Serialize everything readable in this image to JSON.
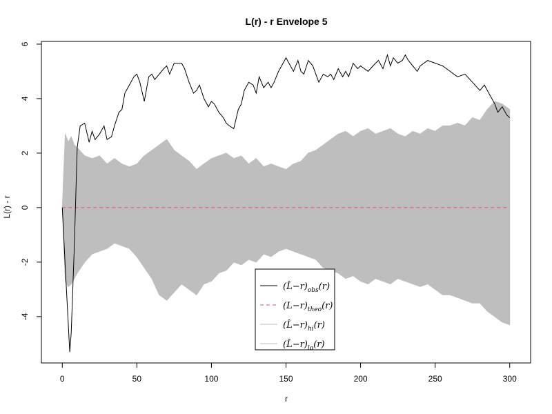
{
  "chart_data": {
    "type": "line",
    "title": "L(r) - r Envelope 5",
    "xlabel": "r",
    "ylabel": "L(r) - r",
    "xlim": [
      -14,
      314
    ],
    "ylim": [
      -5.7,
      6.1
    ],
    "xticks": [
      0,
      50,
      100,
      150,
      200,
      250,
      300
    ],
    "yticks": [
      -4,
      -2,
      0,
      2,
      4,
      6
    ],
    "legend_position": "bottom-center",
    "grid": false,
    "colors": {
      "obs": "#000000",
      "theo": "#DF536B",
      "envelope": "#BEBEBE"
    },
    "series": [
      {
        "name": "obs",
        "style": "solid black line",
        "x": [
          0,
          2,
          5,
          6,
          8,
          10,
          12,
          15,
          18,
          20,
          22,
          25,
          28,
          30,
          33,
          35,
          38,
          40,
          42,
          45,
          48,
          50,
          52,
          55,
          58,
          60,
          62,
          65,
          68,
          70,
          72,
          75,
          78,
          80,
          82,
          85,
          88,
          90,
          92,
          95,
          98,
          100,
          102,
          105,
          108,
          110,
          112,
          115,
          118,
          120,
          122,
          125,
          128,
          130,
          132,
          135,
          138,
          140,
          142,
          145,
          148,
          150,
          152,
          155,
          158,
          160,
          162,
          165,
          168,
          170,
          172,
          175,
          178,
          180,
          182,
          185,
          188,
          190,
          192,
          195,
          198,
          200,
          205,
          210,
          212,
          215,
          218,
          220,
          222,
          225,
          228,
          230,
          232,
          235,
          238,
          240,
          245,
          250,
          255,
          260,
          265,
          270,
          275,
          280,
          283,
          285,
          288,
          290,
          292,
          295,
          298,
          300
        ],
        "y": [
          0,
          -2.2,
          -5.3,
          -4.6,
          -1.5,
          2.2,
          3.0,
          3.1,
          2.4,
          2.8,
          2.5,
          2.7,
          3.0,
          2.5,
          2.6,
          3.0,
          3.5,
          3.6,
          4.2,
          4.5,
          4.8,
          4.9,
          4.6,
          3.9,
          4.8,
          4.9,
          4.7,
          4.9,
          5.1,
          5.2,
          4.9,
          5.3,
          5.3,
          5.3,
          5.1,
          4.6,
          4.2,
          4.3,
          4.5,
          4.0,
          3.7,
          3.9,
          3.8,
          3.5,
          3.3,
          3.1,
          3.0,
          2.9,
          3.6,
          3.8,
          4.3,
          4.6,
          4.5,
          4.2,
          4.8,
          4.4,
          4.6,
          4.4,
          4.6,
          5.0,
          5.3,
          5.5,
          5.3,
          5.0,
          5.4,
          5.0,
          4.9,
          5.4,
          5.2,
          4.9,
          4.6,
          4.9,
          4.8,
          4.9,
          4.7,
          5.1,
          4.8,
          5.0,
          4.8,
          5.3,
          5.1,
          5.2,
          5.0,
          5.3,
          5.4,
          5.1,
          5.6,
          5.2,
          5.5,
          5.3,
          5.4,
          5.6,
          5.4,
          5.2,
          5.0,
          5.2,
          5.4,
          5.3,
          5.2,
          5.0,
          4.8,
          4.9,
          4.6,
          4.3,
          4.5,
          4.3,
          4.0,
          3.8,
          3.5,
          3.7,
          3.4,
          3.3
        ]
      },
      {
        "name": "theo",
        "style": "dashed red line",
        "x": [
          0,
          300
        ],
        "y": [
          0,
          0
        ]
      },
      {
        "name": "envelope",
        "style": "grey filled band between lo and hi",
        "x": [
          0,
          2,
          4,
          6,
          8,
          10,
          15,
          20,
          25,
          30,
          35,
          40,
          45,
          50,
          55,
          60,
          65,
          70,
          75,
          80,
          85,
          90,
          95,
          100,
          105,
          110,
          115,
          120,
          125,
          130,
          135,
          140,
          145,
          150,
          155,
          160,
          165,
          170,
          175,
          180,
          185,
          190,
          195,
          200,
          205,
          210,
          215,
          220,
          225,
          230,
          235,
          240,
          245,
          250,
          255,
          260,
          265,
          270,
          275,
          280,
          285,
          290,
          295,
          300
        ],
        "hi": [
          0,
          2.7,
          2.4,
          2.6,
          2.3,
          2.2,
          1.9,
          1.8,
          1.9,
          1.6,
          1.8,
          1.6,
          1.5,
          1.6,
          1.9,
          2.1,
          2.3,
          2.5,
          2.1,
          1.9,
          1.7,
          1.4,
          1.6,
          1.8,
          1.9,
          2.0,
          1.8,
          1.9,
          1.6,
          1.8,
          1.5,
          1.6,
          1.5,
          1.4,
          1.6,
          1.7,
          2.0,
          2.1,
          2.3,
          2.5,
          2.7,
          2.8,
          2.6,
          2.8,
          2.9,
          2.7,
          2.8,
          2.9,
          2.7,
          2.6,
          2.8,
          2.7,
          2.9,
          2.8,
          3.0,
          3.0,
          3.1,
          3.0,
          3.3,
          3.2,
          3.6,
          3.9,
          3.8,
          3.6
        ],
        "lo": [
          0,
          -2.7,
          -2.9,
          -2.8,
          -2.6,
          -2.4,
          -2.0,
          -1.7,
          -1.6,
          -1.5,
          -1.3,
          -1.4,
          -1.5,
          -1.8,
          -2.2,
          -2.6,
          -3.2,
          -3.4,
          -3.1,
          -2.8,
          -3.0,
          -3.2,
          -2.8,
          -2.7,
          -2.4,
          -2.3,
          -2.0,
          -2.1,
          -1.9,
          -2.0,
          -1.7,
          -1.8,
          -1.6,
          -1.5,
          -1.6,
          -1.7,
          -1.8,
          -1.9,
          -2.2,
          -2.3,
          -2.4,
          -2.6,
          -2.5,
          -2.7,
          -2.8,
          -2.6,
          -2.7,
          -2.8,
          -2.6,
          -2.7,
          -2.8,
          -2.9,
          -2.8,
          -3.0,
          -3.2,
          -3.2,
          -3.3,
          -3.4,
          -3.5,
          -3.5,
          -3.8,
          -4.0,
          -4.2,
          -4.3
        ]
      }
    ],
    "legend": [
      {
        "key": "obs",
        "label": "(L̂−r)obs(r)",
        "base": "(L̂−r)",
        "sub": "obs",
        "tail": "(r)",
        "color": "#000000",
        "dash": ""
      },
      {
        "key": "theo",
        "label": "(L−r)theo(r)",
        "base": "(L−r)",
        "sub": "theo",
        "tail": "(r)",
        "color": "#DF536B",
        "dash": "5,4"
      },
      {
        "key": "hi",
        "label": "(L̂−r)hi(r)",
        "base": "(L̂−r)",
        "sub": "hi",
        "tail": "(r)",
        "color": "#BEBEBE",
        "dash": ""
      },
      {
        "key": "lo",
        "label": "(L̂−r)lo(r)",
        "base": "(L̂−r)",
        "sub": "lo",
        "tail": "(r)",
        "color": "#BEBEBE",
        "dash": ""
      }
    ]
  }
}
